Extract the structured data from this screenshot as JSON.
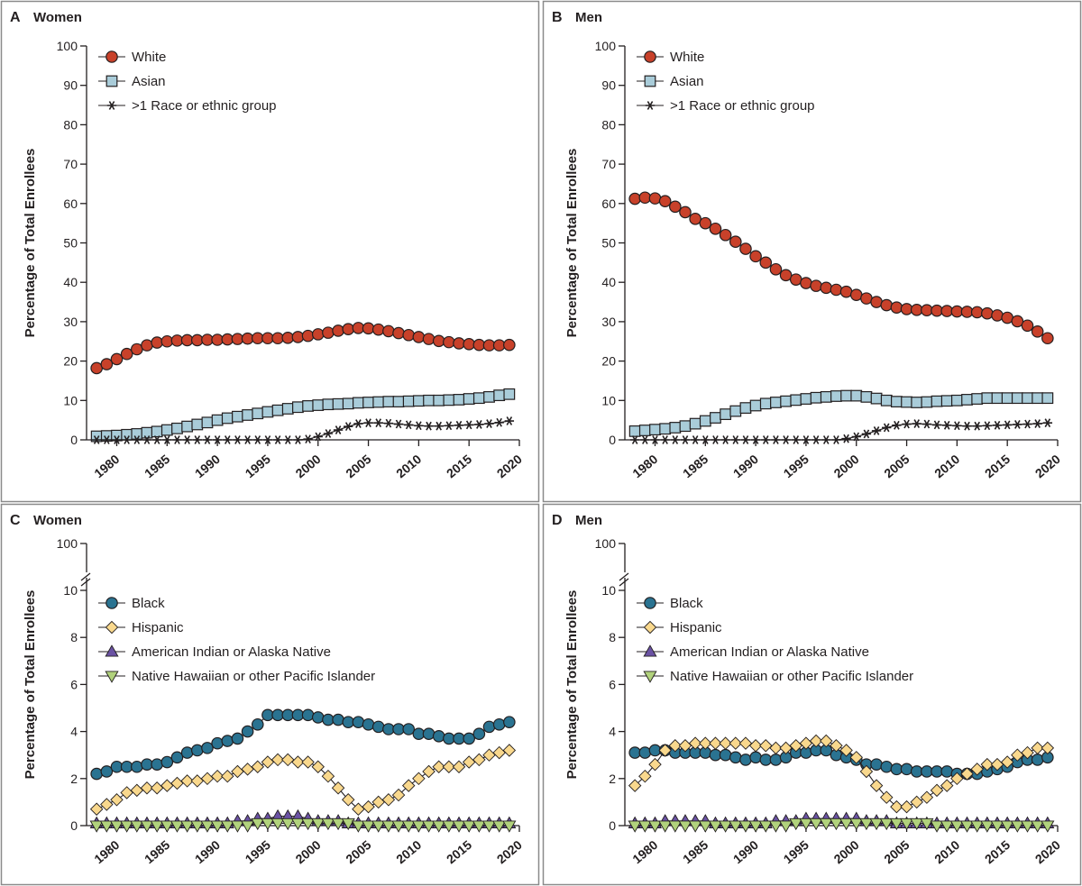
{
  "chart_data": [
    {
      "panel_letter": "A",
      "panel_title": "Women",
      "type": "line",
      "ylabel": "Percentage of Total Enrollees",
      "xlabel": "",
      "ylim": [
        0,
        100
      ],
      "yticks": [
        0,
        10,
        20,
        30,
        40,
        50,
        60,
        70,
        80,
        90,
        100
      ],
      "xlim": [
        1977,
        2020
      ],
      "xticks": [
        1980,
        1985,
        1990,
        1995,
        2000,
        2005,
        2010,
        2015,
        2020
      ],
      "legend_position": "top-left",
      "x": [
        1978,
        1979,
        1980,
        1981,
        1982,
        1983,
        1984,
        1985,
        1986,
        1987,
        1988,
        1989,
        1990,
        1991,
        1992,
        1993,
        1994,
        1995,
        1996,
        1997,
        1998,
        1999,
        2000,
        2001,
        2002,
        2003,
        2004,
        2005,
        2006,
        2007,
        2008,
        2009,
        2010,
        2011,
        2012,
        2013,
        2014,
        2015,
        2016,
        2017,
        2018,
        2019
      ],
      "series": [
        {
          "name": "White",
          "marker": "circle",
          "color": "#c8412a",
          "values": [
            18.2,
            19.2,
            20.5,
            21.8,
            23.0,
            24.0,
            24.7,
            25.0,
            25.2,
            25.3,
            25.3,
            25.4,
            25.4,
            25.5,
            25.6,
            25.7,
            25.8,
            25.8,
            25.8,
            25.9,
            26.1,
            26.4,
            26.8,
            27.2,
            27.7,
            28.1,
            28.4,
            28.3,
            28.0,
            27.6,
            27.1,
            26.6,
            26.1,
            25.6,
            25.1,
            24.8,
            24.5,
            24.3,
            24.1,
            24.0,
            24.0,
            24.1
          ]
        },
        {
          "name": "Asian",
          "marker": "square",
          "color": "#a9ccd9",
          "values": [
            0.9,
            1.0,
            1.1,
            1.3,
            1.5,
            1.8,
            2.1,
            2.5,
            2.9,
            3.4,
            3.9,
            4.4,
            5.0,
            5.5,
            5.9,
            6.3,
            6.7,
            7.1,
            7.5,
            7.9,
            8.3,
            8.6,
            8.8,
            9.0,
            9.1,
            9.2,
            9.4,
            9.5,
            9.6,
            9.7,
            9.7,
            9.8,
            9.9,
            10.0,
            10.0,
            10.1,
            10.2,
            10.4,
            10.6,
            10.9,
            11.3,
            11.6
          ]
        },
        {
          "name": ">1 Race or ethnic group",
          "marker": "asterisk",
          "color": "#231f20",
          "values": [
            0,
            0,
            0,
            0,
            0,
            0,
            0,
            0,
            0,
            0,
            0,
            0,
            0,
            0,
            0,
            0,
            0,
            0,
            0,
            0,
            0,
            0.2,
            0.8,
            1.6,
            2.5,
            3.4,
            4.1,
            4.3,
            4.3,
            4.2,
            4.0,
            3.8,
            3.6,
            3.5,
            3.5,
            3.6,
            3.7,
            3.8,
            3.9,
            4.1,
            4.4,
            4.8
          ]
        }
      ]
    },
    {
      "panel_letter": "B",
      "panel_title": "Men",
      "type": "line",
      "ylabel": "Percentage of Total Enrollees",
      "xlabel": "",
      "ylim": [
        0,
        100
      ],
      "yticks": [
        0,
        10,
        20,
        30,
        40,
        50,
        60,
        70,
        80,
        90,
        100
      ],
      "xlim": [
        1977,
        2020
      ],
      "xticks": [
        1980,
        1985,
        1990,
        1995,
        2000,
        2005,
        2010,
        2015,
        2020
      ],
      "legend_position": "top-left",
      "x": [
        1978,
        1979,
        1980,
        1981,
        1982,
        1983,
        1984,
        1985,
        1986,
        1987,
        1988,
        1989,
        1990,
        1991,
        1992,
        1993,
        1994,
        1995,
        1996,
        1997,
        1998,
        1999,
        2000,
        2001,
        2002,
        2003,
        2004,
        2005,
        2006,
        2007,
        2008,
        2009,
        2010,
        2011,
        2012,
        2013,
        2014,
        2015,
        2016,
        2017,
        2018,
        2019
      ],
      "series": [
        {
          "name": "White",
          "marker": "circle",
          "color": "#c8412a",
          "values": [
            61.2,
            61.5,
            61.3,
            60.6,
            59.2,
            57.8,
            56.1,
            55.0,
            53.6,
            52.0,
            50.3,
            48.5,
            46.6,
            45.0,
            43.3,
            41.8,
            40.7,
            39.8,
            39.1,
            38.6,
            38.1,
            37.6,
            36.8,
            35.9,
            35.0,
            34.2,
            33.6,
            33.2,
            33.0,
            32.9,
            32.8,
            32.7,
            32.6,
            32.5,
            32.4,
            32.1,
            31.6,
            31.0,
            30.1,
            29.0,
            27.5,
            25.8
          ]
        },
        {
          "name": "Asian",
          "marker": "square",
          "color": "#a9ccd9",
          "values": [
            2.2,
            2.4,
            2.6,
            2.8,
            3.1,
            3.5,
            4.1,
            4.8,
            5.6,
            6.5,
            7.3,
            8.1,
            8.7,
            9.2,
            9.5,
            9.8,
            10.1,
            10.4,
            10.7,
            10.9,
            11.1,
            11.2,
            11.2,
            10.9,
            10.5,
            10.0,
            9.7,
            9.6,
            9.5,
            9.6,
            9.8,
            9.9,
            10.0,
            10.2,
            10.4,
            10.6,
            10.6,
            10.6,
            10.6,
            10.6,
            10.6,
            10.6
          ]
        },
        {
          "name": ">1 Race or ethnic group",
          "marker": "asterisk",
          "color": "#231f20",
          "values": [
            0,
            0,
            0,
            0,
            0,
            0,
            0,
            0,
            0,
            0,
            0,
            0,
            0,
            0,
            0,
            0,
            0,
            0,
            0,
            0,
            0,
            0.3,
            0.8,
            1.5,
            2.3,
            3.1,
            3.7,
            4.0,
            4.1,
            4.0,
            3.8,
            3.7,
            3.6,
            3.5,
            3.5,
            3.6,
            3.7,
            3.8,
            3.9,
            4.0,
            4.1,
            4.3
          ]
        }
      ]
    },
    {
      "panel_letter": "C",
      "panel_title": "Women",
      "type": "line",
      "ylabel": "Percentage of Total Enrollees",
      "xlabel": "",
      "ylim": [
        0,
        10
      ],
      "yticks": [
        0,
        2,
        4,
        6,
        8,
        10
      ],
      "ybreak_top_tick": 100,
      "xlim": [
        1977,
        2020
      ],
      "xticks": [
        1980,
        1985,
        1990,
        1995,
        2000,
        2005,
        2010,
        2015,
        2020
      ],
      "legend_position": "top-left",
      "x": [
        1978,
        1979,
        1980,
        1981,
        1982,
        1983,
        1984,
        1985,
        1986,
        1987,
        1988,
        1989,
        1990,
        1991,
        1992,
        1993,
        1994,
        1995,
        1996,
        1997,
        1998,
        1999,
        2000,
        2001,
        2002,
        2003,
        2004,
        2005,
        2006,
        2007,
        2008,
        2009,
        2010,
        2011,
        2012,
        2013,
        2014,
        2015,
        2016,
        2017,
        2018,
        2019
      ],
      "series": [
        {
          "name": "Black",
          "marker": "circle",
          "color": "#2a7391",
          "values": [
            2.2,
            2.3,
            2.5,
            2.5,
            2.5,
            2.6,
            2.6,
            2.7,
            2.9,
            3.1,
            3.2,
            3.3,
            3.5,
            3.6,
            3.7,
            4.0,
            4.3,
            4.7,
            4.7,
            4.7,
            4.7,
            4.7,
            4.6,
            4.5,
            4.5,
            4.4,
            4.4,
            4.3,
            4.2,
            4.1,
            4.1,
            4.1,
            3.9,
            3.9,
            3.8,
            3.7,
            3.7,
            3.7,
            3.9,
            4.2,
            4.3,
            4.4
          ]
        },
        {
          "name": "Hispanic",
          "marker": "diamond",
          "color": "#f9d88d",
          "values": [
            0.7,
            0.9,
            1.1,
            1.4,
            1.5,
            1.6,
            1.6,
            1.7,
            1.8,
            1.9,
            1.9,
            2.0,
            2.1,
            2.1,
            2.3,
            2.4,
            2.5,
            2.7,
            2.8,
            2.8,
            2.7,
            2.7,
            2.5,
            2.1,
            1.6,
            1.1,
            0.7,
            0.8,
            1.0,
            1.1,
            1.3,
            1.7,
            2.0,
            2.3,
            2.5,
            2.5,
            2.5,
            2.7,
            2.8,
            3.0,
            3.1,
            3.2
          ]
        },
        {
          "name": "American Indian or Alaska Native",
          "marker": "triangle-up",
          "color": "#6a52a3",
          "values": [
            0.1,
            0.1,
            0.1,
            0.1,
            0.1,
            0.1,
            0.1,
            0.1,
            0.1,
            0.1,
            0.1,
            0.1,
            0.1,
            0.1,
            0.2,
            0.2,
            0.3,
            0.3,
            0.4,
            0.4,
            0.4,
            0.3,
            0.2,
            0.2,
            0.2,
            0.1,
            0.1,
            0.1,
            0.1,
            0.1,
            0.1,
            0.1,
            0.1,
            0.1,
            0.1,
            0.1,
            0.1,
            0.1,
            0.1,
            0.1,
            0.1,
            0.1
          ]
        },
        {
          "name": "Native Hawaiian or other Pacific Islander",
          "marker": "triangle-down",
          "color": "#b1d27c",
          "values": [
            0,
            0,
            0,
            0,
            0,
            0,
            0,
            0,
            0,
            0,
            0,
            0,
            0,
            0,
            0,
            0,
            0.1,
            0.1,
            0.1,
            0.1,
            0.1,
            0.1,
            0.1,
            0.1,
            0.1,
            0.1,
            0,
            0,
            0,
            0,
            0,
            0,
            0,
            0,
            0,
            0,
            0,
            0,
            0,
            0,
            0,
            0
          ]
        }
      ]
    },
    {
      "panel_letter": "D",
      "panel_title": "Men",
      "type": "line",
      "ylabel": "Percentage of Total Enrollees",
      "xlabel": "",
      "ylim": [
        0,
        10
      ],
      "yticks": [
        0,
        2,
        4,
        6,
        8,
        10
      ],
      "ybreak_top_tick": 100,
      "xlim": [
        1977,
        2020
      ],
      "xticks": [
        1980,
        1985,
        1990,
        1995,
        2000,
        2005,
        2010,
        2015,
        2020
      ],
      "legend_position": "top-left",
      "x": [
        1978,
        1979,
        1980,
        1981,
        1982,
        1983,
        1984,
        1985,
        1986,
        1987,
        1988,
        1989,
        1990,
        1991,
        1992,
        1993,
        1994,
        1995,
        1996,
        1997,
        1998,
        1999,
        2000,
        2001,
        2002,
        2003,
        2004,
        2005,
        2006,
        2007,
        2008,
        2009,
        2010,
        2011,
        2012,
        2013,
        2014,
        2015,
        2016,
        2017,
        2018,
        2019
      ],
      "series": [
        {
          "name": "Black",
          "marker": "circle",
          "color": "#2a7391",
          "values": [
            3.1,
            3.1,
            3.2,
            3.2,
            3.1,
            3.1,
            3.1,
            3.1,
            3.0,
            3.0,
            2.9,
            2.8,
            2.9,
            2.8,
            2.8,
            2.9,
            3.1,
            3.1,
            3.2,
            3.2,
            3.0,
            2.9,
            2.8,
            2.6,
            2.6,
            2.5,
            2.4,
            2.4,
            2.3,
            2.3,
            2.3,
            2.3,
            2.2,
            2.2,
            2.2,
            2.3,
            2.4,
            2.5,
            2.7,
            2.8,
            2.8,
            2.9
          ]
        },
        {
          "name": "Hispanic",
          "marker": "diamond",
          "color": "#f9d88d",
          "values": [
            1.7,
            2.1,
            2.6,
            3.2,
            3.4,
            3.4,
            3.5,
            3.5,
            3.5,
            3.5,
            3.5,
            3.5,
            3.4,
            3.4,
            3.3,
            3.3,
            3.4,
            3.5,
            3.6,
            3.6,
            3.4,
            3.2,
            2.9,
            2.3,
            1.7,
            1.2,
            0.8,
            0.8,
            1.0,
            1.2,
            1.5,
            1.7,
            2.0,
            2.2,
            2.4,
            2.6,
            2.6,
            2.7,
            3.0,
            3.1,
            3.3,
            3.3
          ]
        },
        {
          "name": "American Indian or Alaska Native",
          "marker": "triangle-up",
          "color": "#6a52a3",
          "values": [
            0.1,
            0.1,
            0.1,
            0.2,
            0.2,
            0.2,
            0.2,
            0.2,
            0.1,
            0.1,
            0.1,
            0.1,
            0.1,
            0.1,
            0.2,
            0.2,
            0.2,
            0.3,
            0.3,
            0.3,
            0.3,
            0.3,
            0.3,
            0.2,
            0.2,
            0.2,
            0.1,
            0.1,
            0.1,
            0.1,
            0.1,
            0.1,
            0.1,
            0.1,
            0.1,
            0.1,
            0.1,
            0.1,
            0.1,
            0.1,
            0.1,
            0.1
          ]
        },
        {
          "name": "Native Hawaiian or other Pacific Islander",
          "marker": "triangle-down",
          "color": "#b1d27c",
          "values": [
            0,
            0,
            0,
            0,
            0,
            0,
            0,
            0,
            0,
            0,
            0,
            0,
            0,
            0,
            0,
            0,
            0.1,
            0.1,
            0.1,
            0.1,
            0.1,
            0.1,
            0.1,
            0.1,
            0.1,
            0.1,
            0.1,
            0.1,
            0.1,
            0.1,
            0,
            0,
            0,
            0,
            0,
            0,
            0,
            0,
            0,
            0,
            0,
            0
          ]
        }
      ]
    }
  ]
}
